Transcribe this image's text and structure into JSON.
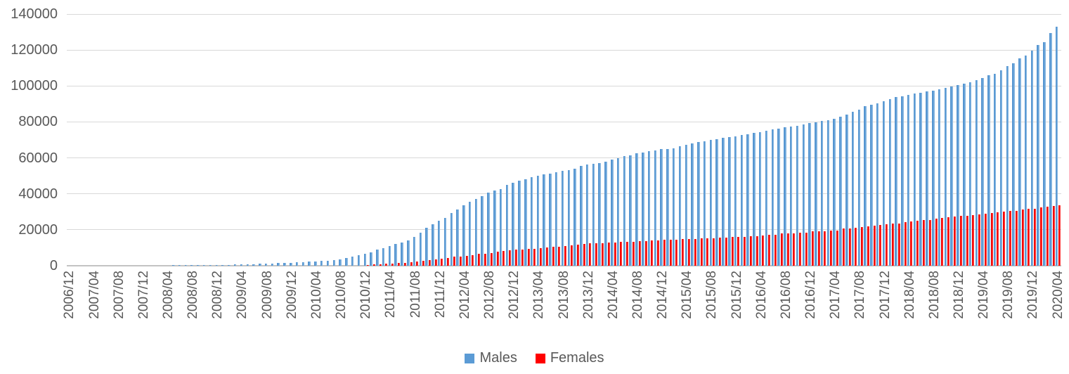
{
  "chart_data": {
    "type": "bar",
    "title": "",
    "grid": true,
    "legend_position": "bottom",
    "axis_text_color": "#595959",
    "gridline_color": "#d9d9d9",
    "ylim": [
      0,
      140000
    ],
    "yticks": [
      0,
      20000,
      40000,
      60000,
      80000,
      100000,
      120000,
      140000
    ],
    "x_tick_every": 4,
    "x_tick_labels": [
      "2006/12",
      "2007/04",
      "2007/08",
      "2007/12",
      "2008/04",
      "2008/08",
      "2008/12",
      "2009/04",
      "2009/08",
      "2009/12",
      "2010/04",
      "2010/08",
      "2010/12",
      "2011/04",
      "2011/08",
      "2011/12",
      "2012/04",
      "2012/08",
      "2012/12",
      "2013/04",
      "2013/08",
      "2013/12",
      "2014/04",
      "2014/08",
      "2014/12",
      "2015/04",
      "2015/08",
      "2015/12",
      "2016/04",
      "2016/08",
      "2016/12",
      "2017/04",
      "2017/08",
      "2017/12",
      "2018/04",
      "2018/08",
      "2018/12",
      "2019/04",
      "2019/08",
      "2019/12",
      "2020/04"
    ],
    "categories": [
      "2006/12",
      "2007/01",
      "2007/02",
      "2007/03",
      "2007/04",
      "2007/05",
      "2007/06",
      "2007/07",
      "2007/08",
      "2007/09",
      "2007/10",
      "2007/11",
      "2007/12",
      "2008/01",
      "2008/02",
      "2008/03",
      "2008/04",
      "2008/05",
      "2008/06",
      "2008/07",
      "2008/08",
      "2008/09",
      "2008/10",
      "2008/11",
      "2008/12",
      "2009/01",
      "2009/02",
      "2009/03",
      "2009/04",
      "2009/05",
      "2009/06",
      "2009/07",
      "2009/08",
      "2009/09",
      "2009/10",
      "2009/11",
      "2009/12",
      "2010/01",
      "2010/02",
      "2010/03",
      "2010/04",
      "2010/05",
      "2010/06",
      "2010/07",
      "2010/08",
      "2010/09",
      "2010/10",
      "2010/11",
      "2010/12",
      "2011/01",
      "2011/02",
      "2011/03",
      "2011/04",
      "2011/05",
      "2011/06",
      "2011/07",
      "2011/08",
      "2011/09",
      "2011/10",
      "2011/11",
      "2011/12",
      "2012/01",
      "2012/02",
      "2012/03",
      "2012/04",
      "2012/05",
      "2012/06",
      "2012/07",
      "2012/08",
      "2012/09",
      "2012/10",
      "2012/11",
      "2012/12",
      "2013/01",
      "2013/02",
      "2013/03",
      "2013/04",
      "2013/05",
      "2013/06",
      "2013/07",
      "2013/08",
      "2013/09",
      "2013/10",
      "2013/11",
      "2013/12",
      "2014/01",
      "2014/02",
      "2014/03",
      "2014/04",
      "2014/05",
      "2014/06",
      "2014/07",
      "2014/08",
      "2014/09",
      "2014/10",
      "2014/11",
      "2014/12",
      "2015/01",
      "2015/02",
      "2015/03",
      "2015/04",
      "2015/05",
      "2015/06",
      "2015/07",
      "2015/08",
      "2015/09",
      "2015/10",
      "2015/11",
      "2015/12",
      "2016/01",
      "2016/02",
      "2016/03",
      "2016/04",
      "2016/05",
      "2016/06",
      "2016/07",
      "2016/08",
      "2016/09",
      "2016/10",
      "2016/11",
      "2016/12",
      "2017/01",
      "2017/02",
      "2017/03",
      "2017/04",
      "2017/05",
      "2017/06",
      "2017/07",
      "2017/08",
      "2017/09",
      "2017/10",
      "2017/11",
      "2017/12",
      "2018/01",
      "2018/02",
      "2018/03",
      "2018/04",
      "2018/05",
      "2018/06",
      "2018/07",
      "2018/08",
      "2018/09",
      "2018/10",
      "2018/11",
      "2018/12",
      "2019/01",
      "2019/02",
      "2019/03",
      "2019/04",
      "2019/05",
      "2019/06",
      "2019/07",
      "2019/08",
      "2019/09",
      "2019/10",
      "2019/11",
      "2019/12",
      "2020/01",
      "2020/02",
      "2020/03",
      "2020/04"
    ],
    "series": [
      {
        "name": "Males",
        "color": "#5b9bd5",
        "values": [
          0,
          10,
          15,
          20,
          30,
          40,
          50,
          60,
          70,
          80,
          90,
          100,
          120,
          140,
          160,
          180,
          200,
          220,
          250,
          280,
          310,
          340,
          370,
          400,
          450,
          500,
          550,
          600,
          700,
          800,
          900,
          1050,
          1180,
          1300,
          1400,
          1550,
          1700,
          1830,
          1960,
          2200,
          2480,
          2620,
          2880,
          3140,
          3530,
          4400,
          5000,
          5700,
          6500,
          7600,
          8900,
          9800,
          10800,
          12100,
          13100,
          14100,
          16000,
          18500,
          21000,
          23000,
          25000,
          26500,
          29200,
          31200,
          33500,
          35500,
          37000,
          38600,
          40600,
          41900,
          42800,
          44800,
          46000,
          47300,
          48000,
          49300,
          50000,
          50900,
          51300,
          52000,
          52800,
          53200,
          54000,
          55400,
          56300,
          56700,
          57100,
          58000,
          59000,
          60000,
          60900,
          61500,
          62600,
          63100,
          63900,
          64200,
          64900,
          65100,
          65500,
          66300,
          67400,
          68000,
          68700,
          69400,
          70000,
          70500,
          71000,
          71500,
          72100,
          72700,
          73300,
          73900,
          74500,
          75100,
          75700,
          76300,
          76900,
          77500,
          78000,
          78600,
          79200,
          79900,
          80500,
          81100,
          81800,
          83000,
          84200,
          85500,
          86900,
          88800,
          89400,
          90500,
          91600,
          92600,
          93700,
          94200,
          95200,
          95900,
          96300,
          96800,
          97500,
          98100,
          99100,
          99700,
          100400,
          101300,
          102000,
          103300,
          104300,
          105900,
          106900,
          108900,
          110900,
          112800,
          115500,
          117100,
          119600,
          122900,
          124300,
          129300,
          132900
        ]
      },
      {
        "name": "Females",
        "color": "#ff0000",
        "values": [
          0,
          0,
          0,
          0,
          0,
          0,
          0,
          0,
          0,
          0,
          0,
          0,
          0,
          0,
          0,
          0,
          0,
          0,
          0,
          0,
          0,
          0,
          0,
          0,
          0,
          0,
          0,
          0,
          0,
          0,
          0,
          0,
          0,
          0,
          0,
          0,
          0,
          0,
          0,
          0,
          0,
          0,
          0,
          0,
          0,
          0,
          0,
          0,
          400,
          800,
          950,
          1180,
          1300,
          1700,
          1750,
          1960,
          2350,
          2740,
          3000,
          3660,
          4050,
          4300,
          4970,
          5230,
          5620,
          5880,
          6530,
          6670,
          7190,
          7840,
          8230,
          8500,
          8900,
          9150,
          9300,
          9540,
          9800,
          10200,
          10450,
          10700,
          11100,
          11500,
          11760,
          12150,
          12400,
          12550,
          12700,
          12900,
          13100,
          13250,
          13350,
          13450,
          13600,
          13750,
          13900,
          14100,
          14400,
          14500,
          14600,
          14700,
          14800,
          14950,
          15100,
          15200,
          15350,
          15500,
          15700,
          15850,
          16000,
          16200,
          16400,
          16600,
          16800,
          17100,
          17400,
          17800,
          17900,
          18000,
          18300,
          18550,
          19000,
          19100,
          19200,
          19600,
          19750,
          20650,
          20900,
          21300,
          21400,
          21950,
          22350,
          22600,
          23270,
          23400,
          23660,
          24200,
          24600,
          25200,
          25500,
          25600,
          26270,
          26500,
          26900,
          27200,
          27600,
          27800,
          28100,
          28500,
          28900,
          29400,
          29800,
          30200,
          30450,
          30700,
          31100,
          31500,
          31760,
          32400,
          32800,
          33300,
          33700
        ]
      }
    ]
  }
}
